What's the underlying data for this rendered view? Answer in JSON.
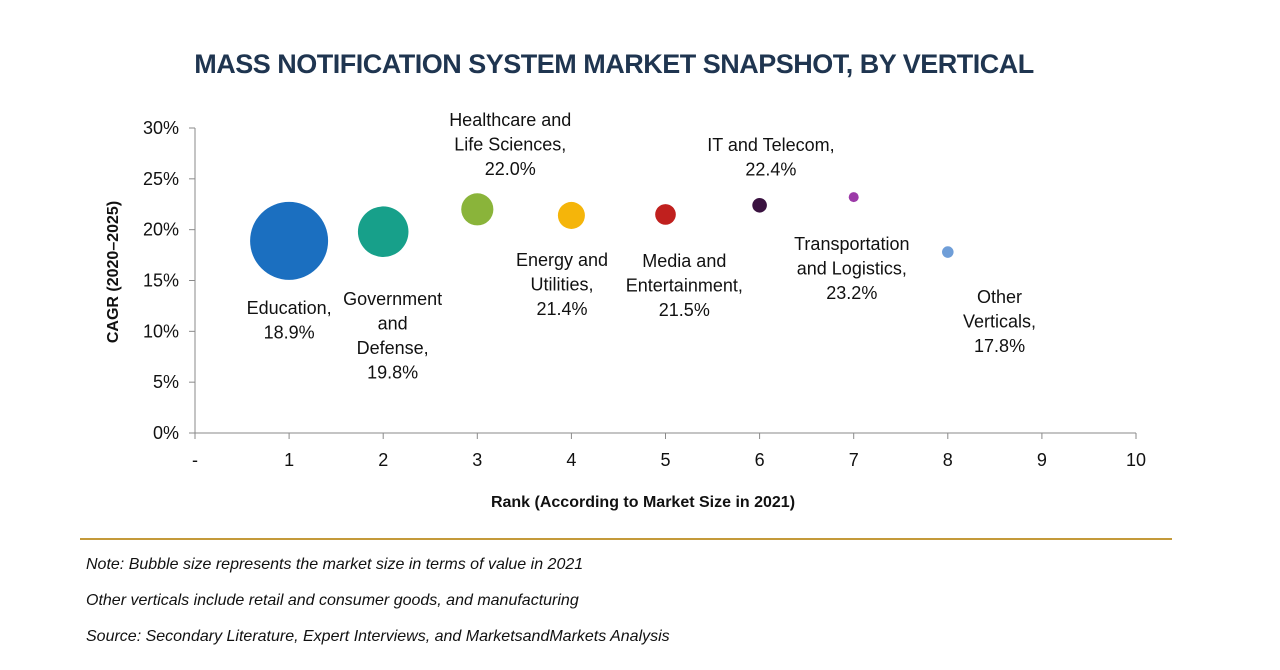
{
  "chart_data": {
    "type": "bubble",
    "title": "MASS NOTIFICATION SYSTEM MARKET SNAPSHOT, BY VERTICAL",
    "xlabel": "Rank (According to Market Size in 2021)",
    "ylabel": "CAGR (2020–2025)",
    "xlim": [
      0,
      10
    ],
    "ylim": [
      0,
      30
    ],
    "x_ticks": [
      "-",
      "1",
      "2",
      "3",
      "4",
      "5",
      "6",
      "7",
      "8",
      "9",
      "10"
    ],
    "y_ticks": [
      "0%",
      "5%",
      "10%",
      "15%",
      "20%",
      "25%",
      "30%"
    ],
    "series": [
      {
        "name": "Education",
        "label_lines": [
          "Education,",
          "18.9%"
        ],
        "x": 1,
        "y": 18.9,
        "size": 1.0,
        "color": "#1b6fc0"
      },
      {
        "name": "Government and Defense",
        "label_lines": [
          "Government",
          "and",
          "Defense,",
          "19.8%"
        ],
        "x": 2,
        "y": 19.8,
        "size": 0.42,
        "color": "#17a08a"
      },
      {
        "name": "Healthcare and Life Sciences",
        "label_lines": [
          "Healthcare and",
          "Life Sciences,",
          "22.0%"
        ],
        "x": 3,
        "y": 22.0,
        "size": 0.17,
        "color": "#8ab43a"
      },
      {
        "name": "Energy and Utilities",
        "label_lines": [
          "Energy and",
          "Utilities,",
          "21.4%"
        ],
        "x": 4,
        "y": 21.4,
        "size": 0.12,
        "color": "#f5b50a"
      },
      {
        "name": "Media and Entertainment",
        "label_lines": [
          "Media and",
          "Entertainment,",
          "21.5%"
        ],
        "x": 5,
        "y": 21.5,
        "size": 0.07,
        "color": "#c0201e"
      },
      {
        "name": "IT and Telecom",
        "label_lines": [
          "IT and Telecom,",
          "22.4%"
        ],
        "x": 6,
        "y": 22.4,
        "size": 0.035,
        "color": "#3a1240"
      },
      {
        "name": "Transportation and Logistics",
        "label_lines": [
          "Transportation",
          "and Logistics,",
          "23.2%"
        ],
        "x": 7,
        "y": 23.2,
        "size": 0.012,
        "color": "#9c3aa8"
      },
      {
        "name": "Other Verticals",
        "label_lines": [
          "Other",
          "Verticals,",
          "17.8%"
        ],
        "x": 8,
        "y": 17.8,
        "size": 0.022,
        "color": "#6f9ed8"
      }
    ],
    "legend": "none",
    "grid": false
  },
  "notes": {
    "note1": "Note: Bubble size represents the market size in terms of value in 2021",
    "note2": "Other verticals include retail and consumer goods, and manufacturing",
    "note3": "Source: Secondary Literature, Expert Interviews, and MarketsandMarkets Analysis"
  }
}
